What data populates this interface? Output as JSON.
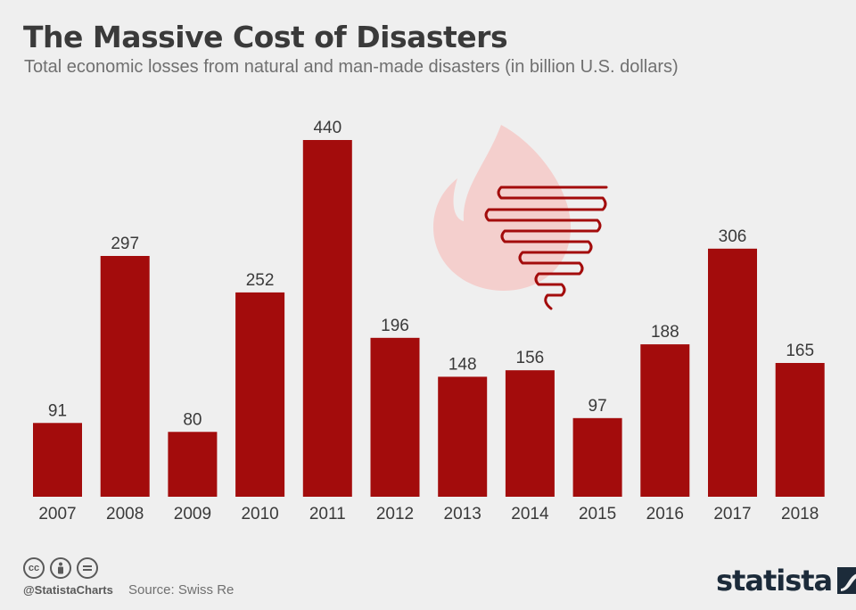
{
  "header": {
    "title": "The Massive Cost of Disasters",
    "subtitle": "Total economic losses from natural and man-made disasters (in billion U.S. dollars)"
  },
  "footer": {
    "handle": "@StatistaCharts",
    "source": "Source: Swiss Re",
    "brand": "statista",
    "license_icons": [
      "cc-icon",
      "attribution-icon",
      "no-derivatives-icon"
    ]
  },
  "colors": {
    "bar": "#a30c0c",
    "illustration_flame": "#f4cfcd",
    "illustration_tornado": "#a30c0c",
    "background": "#efefef"
  },
  "chart_data": {
    "type": "bar",
    "title": "The Massive Cost of Disasters",
    "subtitle": "Total economic losses from natural and man-made disasters (in billion U.S. dollars)",
    "categories": [
      "2007",
      "2008",
      "2009",
      "2010",
      "2011",
      "2012",
      "2013",
      "2014",
      "2015",
      "2016",
      "2017",
      "2018"
    ],
    "values": [
      91,
      297,
      80,
      252,
      440,
      196,
      148,
      156,
      97,
      188,
      306,
      165
    ],
    "ylim": [
      0,
      440
    ],
    "grid": false,
    "data_labels": true
  }
}
